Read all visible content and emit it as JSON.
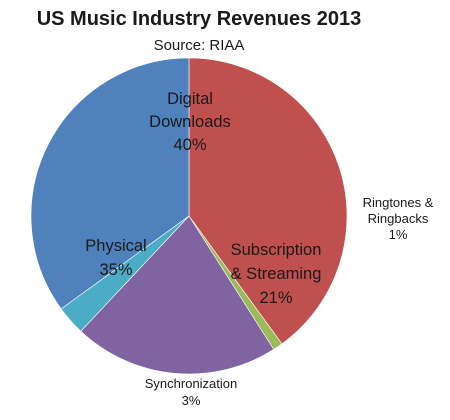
{
  "chart_data": {
    "type": "pie",
    "title": "US Music Industry Revenues 2013",
    "subtitle": "Source: RIAA",
    "legend": "none",
    "slices": [
      {
        "label": [
          "Digital",
          "Downloads"
        ],
        "value": 40,
        "display": "40%",
        "color": "#c0504d",
        "label_position": "inside"
      },
      {
        "label": [
          "Ringtones &",
          "Ringbacks"
        ],
        "value": 1,
        "display": "1%",
        "color": "#9bbb59",
        "label_position": "outside"
      },
      {
        "label": [
          "Subscription",
          "& Streaming"
        ],
        "value": 21,
        "display": "21%",
        "color": "#8064a2",
        "label_position": "inside"
      },
      {
        "label": [
          "Synchronization"
        ],
        "value": 3,
        "display": "3%",
        "color": "#4bacc6",
        "label_position": "outside"
      },
      {
        "label": [
          "Physical"
        ],
        "value": 35,
        "display": "35%",
        "color": "#4f81bd",
        "label_position": "inside"
      }
    ]
  }
}
